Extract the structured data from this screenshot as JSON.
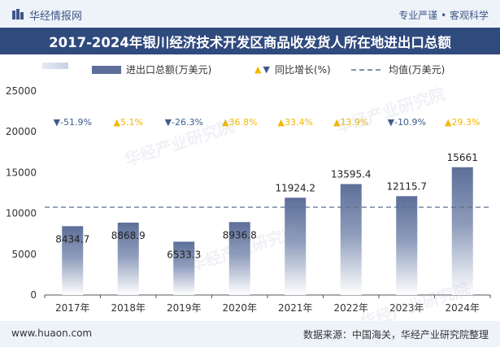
{
  "header": {
    "brand": "华经情报网",
    "tagline": "专业严谨 • 客观科学",
    "title": "2017-2024年银川经济技术开发区商品收发货人所在地进出口总额"
  },
  "legend": {
    "bar": "进出口总额(万美元)",
    "growth": "同比增长(%)",
    "avg": "均值(万美元)"
  },
  "watermark": "华经产业研究院",
  "footer": {
    "website": "www.huaon.com",
    "source": "数据来源：中国海关，华经产业研究院整理"
  },
  "colors": {
    "bar_top": "#5d6f99",
    "bar_bottom": "#ffffff",
    "up": "#f5b700",
    "down": "#3d5c8a",
    "avg_line": "#5a6f8f"
  },
  "chart_data": {
    "type": "bar",
    "categories": [
      "2017年",
      "2018年",
      "2019年",
      "2020年",
      "2021年",
      "2022年",
      "2023年",
      "2024年"
    ],
    "values": [
      8434.7,
      8868.9,
      6533.3,
      8936.8,
      11924.2,
      13595.4,
      12115.7,
      15661
    ],
    "value_labels": [
      "8434.7",
      "8868.9",
      "6533.3",
      "8936.8",
      "11924.2",
      "13595.4",
      "12115.7",
      "15661"
    ],
    "growth": [
      "-51.9%",
      "5.1%",
      "-26.3%",
      "36.8%",
      "33.4%",
      "13.9%",
      "-10.9%",
      "29.3%"
    ],
    "growth_direction": [
      "down",
      "up",
      "down",
      "up",
      "up",
      "up",
      "down",
      "up"
    ],
    "average": 10758.75,
    "ylim": [
      0,
      25000
    ],
    "yticks": [
      "0",
      "5000",
      "10000",
      "15000",
      "20000",
      "25000"
    ],
    "ytick_values": [
      0,
      5000,
      10000,
      15000,
      20000,
      25000
    ]
  }
}
